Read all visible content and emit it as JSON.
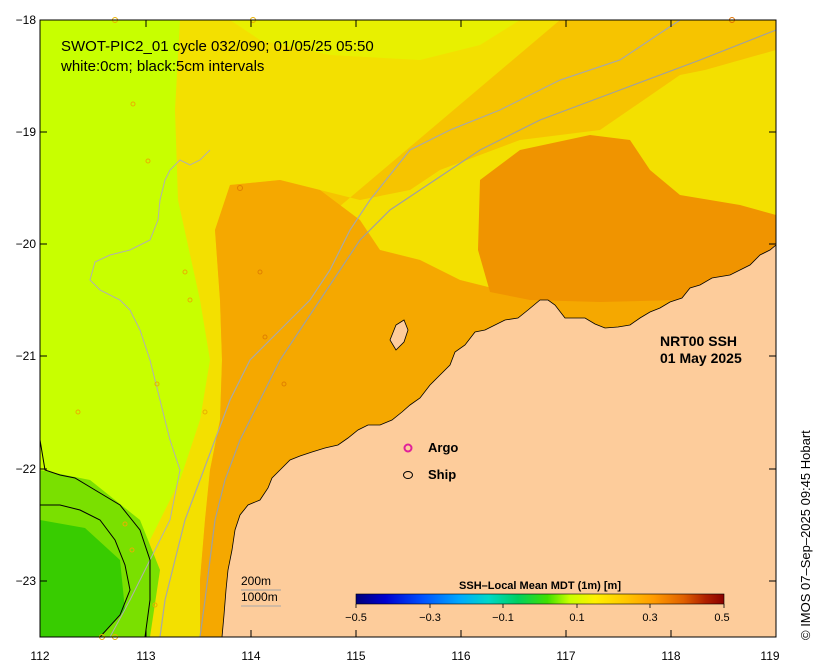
{
  "header": {
    "line1": "SWOT-PIC2_01 cycle 032/090; 01/05/25 05:50",
    "line2": "white:0cm; black:5cm intervals"
  },
  "product": {
    "name": "NRT00 SSH",
    "date": "01 May 2025"
  },
  "legend": {
    "argo_label": "Argo",
    "ship_label": "Ship",
    "argo_color": "#e0209a",
    "ship_color": "#000000"
  },
  "bathymetry": {
    "contour_200": "200m",
    "contour_1000": "1000m"
  },
  "colorbar": {
    "title": "SSH–Local Mean MDT (1m) [m]",
    "range": [
      -0.5,
      0.5
    ],
    "tick_labels": [
      "−0.5",
      "−0.3",
      "−0.1",
      "0.1",
      "0.3",
      "0.5"
    ],
    "colors": [
      "#00007a",
      "#0000d0",
      "#0050ff",
      "#00a8ff",
      "#00d8c8",
      "#00d060",
      "#40e000",
      "#c8ff00",
      "#fff000",
      "#ffc800",
      "#ff9a00",
      "#e06000",
      "#b02000",
      "#8a0000"
    ]
  },
  "axes": {
    "x_ticks": [
      "112",
      "113",
      "114",
      "115",
      "116",
      "117",
      "118",
      "119"
    ],
    "y_ticks": [
      "−18",
      "−19",
      "−20",
      "−21",
      "−22",
      "−23"
    ],
    "lon_range": [
      112,
      119
    ],
    "lat_range": [
      -23.5,
      -18
    ]
  },
  "credit": "© IMOS 07–Sep–2025 09:45 Hobart",
  "colors": {
    "land": "#fdcc9b",
    "ssh_green": "#44d400",
    "ssh_lime": "#c8ff00",
    "ssh_yellow": "#f3e000",
    "ssh_gold": "#f6c400",
    "ssh_orange": "#f5a800",
    "ssh_dark_orange": "#f09400"
  }
}
